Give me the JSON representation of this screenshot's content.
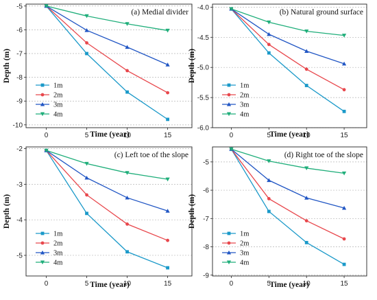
{
  "chart_data": [
    {
      "type": "line",
      "title": "(a) Medial divider",
      "xlabel": "Time (year)",
      "ylabel": "Depth (m)",
      "x": [
        0,
        5,
        10,
        15
      ],
      "xticks": [
        "0",
        "5",
        "10",
        "15"
      ],
      "ylim": [
        -10,
        -5
      ],
      "yticks": [
        "-10",
        "-9",
        "-8",
        "-7",
        "-6",
        "-5"
      ],
      "legend_position": "bottom-left",
      "grid": "horizontal dashed",
      "series": [
        {
          "name": "1m",
          "values": [
            -5.0,
            -7.0,
            -8.62,
            -9.77
          ]
        },
        {
          "name": "2m",
          "values": [
            -5.0,
            -6.55,
            -7.72,
            -8.65
          ]
        },
        {
          "name": "3m",
          "values": [
            -5.0,
            -6.02,
            -6.73,
            -7.47
          ]
        },
        {
          "name": "4m",
          "values": [
            -5.0,
            -5.42,
            -5.75,
            -6.03
          ]
        }
      ]
    },
    {
      "type": "line",
      "title": "(b) Natural ground surface",
      "xlabel": "Time (year)",
      "ylabel": "Depth (m)",
      "x": [
        0,
        5,
        10,
        15
      ],
      "xticks": [
        "0",
        "5",
        "10",
        "15"
      ],
      "ylim": [
        -6.0,
        -4.0
      ],
      "yticks": [
        "-6.0",
        "-5.5",
        "-5.0",
        "-4.5",
        "-4.0"
      ],
      "legend_position": "bottom-left",
      "grid": "horizontal dashed",
      "series": [
        {
          "name": "1m",
          "values": [
            -4.03,
            -4.76,
            -5.3,
            -5.73
          ]
        },
        {
          "name": "2m",
          "values": [
            -4.03,
            -4.62,
            -5.03,
            -5.37
          ]
        },
        {
          "name": "3m",
          "values": [
            -4.03,
            -4.45,
            -4.73,
            -4.94
          ]
        },
        {
          "name": "4m",
          "values": [
            -4.03,
            -4.25,
            -4.4,
            -4.47
          ]
        }
      ]
    },
    {
      "type": "line",
      "title": "(c) Left toe of the slope",
      "xlabel": "Time (year)",
      "ylabel": "Depth (m)",
      "x": [
        0,
        5,
        10,
        15
      ],
      "xticks": [
        "0",
        "5",
        "10",
        "15"
      ],
      "ylim": [
        -5.5,
        -2
      ],
      "yticks": [
        "-5",
        "-4",
        "-3",
        "-2"
      ],
      "legend_position": "bottom-left",
      "grid": "horizontal dashed",
      "series": [
        {
          "name": "1m",
          "values": [
            -2.05,
            -3.82,
            -4.9,
            -5.35
          ]
        },
        {
          "name": "2m",
          "values": [
            -2.05,
            -3.3,
            -4.12,
            -4.58
          ]
        },
        {
          "name": "3m",
          "values": [
            -2.05,
            -2.82,
            -3.38,
            -3.75
          ]
        },
        {
          "name": "4m",
          "values": [
            -2.05,
            -2.42,
            -2.68,
            -2.86
          ]
        }
      ]
    },
    {
      "type": "line",
      "title": "(d) Right toe of the slope",
      "xlabel": "Time (year)",
      "ylabel": "Depth (m)",
      "x": [
        0,
        5,
        10,
        15
      ],
      "xticks": [
        "0",
        "5",
        "10",
        "15"
      ],
      "ylim": [
        -9,
        -4.5
      ],
      "yticks": [
        "-9",
        "-8",
        "-7",
        "-6",
        "-5"
      ],
      "legend_position": "bottom-left",
      "grid": "horizontal dashed",
      "series": [
        {
          "name": "1m",
          "values": [
            -4.55,
            -6.75,
            -7.85,
            -8.62
          ]
        },
        {
          "name": "2m",
          "values": [
            -4.55,
            -6.3,
            -7.08,
            -7.72
          ]
        },
        {
          "name": "3m",
          "values": [
            -4.55,
            -5.65,
            -6.27,
            -6.63
          ]
        },
        {
          "name": "4m",
          "values": [
            -4.55,
            -4.97,
            -5.22,
            -5.4
          ]
        }
      ]
    }
  ],
  "series_colors": [
    "#1a99c9",
    "#e8474c",
    "#2156c4",
    "#1fae7a"
  ],
  "series_markers": [
    "square",
    "circle",
    "triangle-up",
    "triangle-down"
  ]
}
